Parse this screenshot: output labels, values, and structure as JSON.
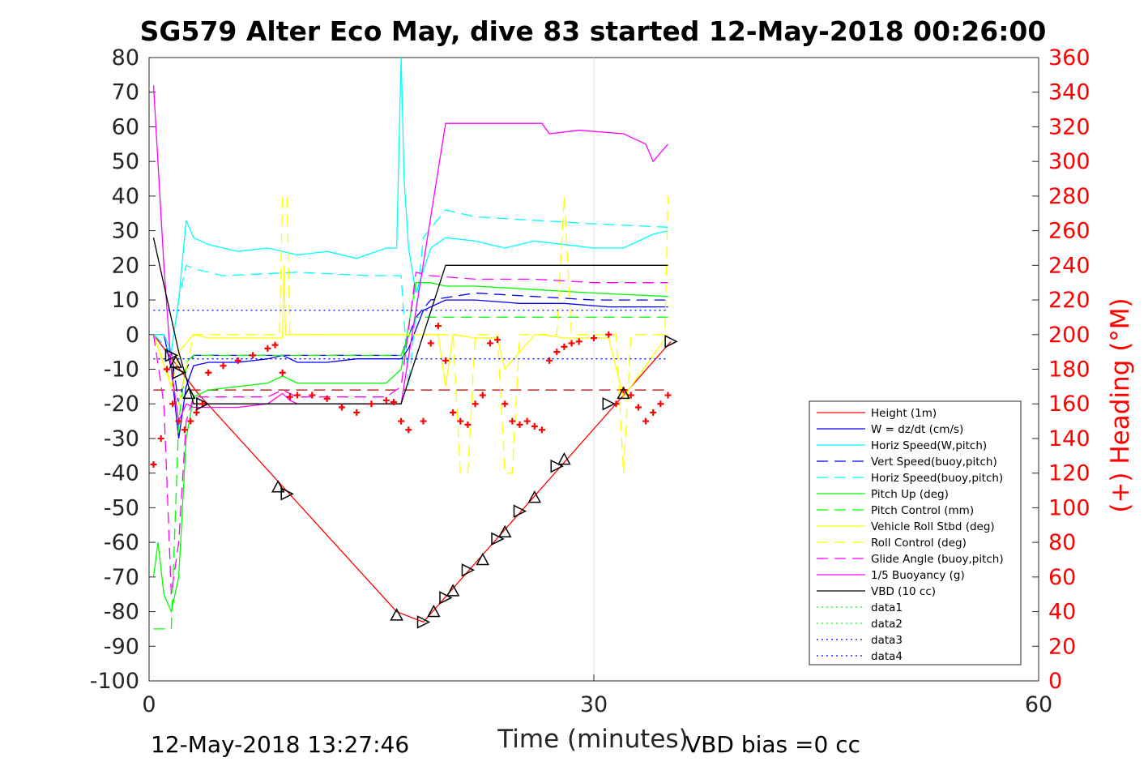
{
  "chart_data": {
    "type": "line",
    "title": "SG579 Alter Eco May, dive 83 started 12-May-2018 00:26:00",
    "xlabel": "Time (minutes)",
    "ylabel_right": "(+) Heading (°M)",
    "xlim": [
      0,
      60
    ],
    "ylim": [
      -100,
      80
    ],
    "ylim_right": [
      0,
      360
    ],
    "xticks": [
      0,
      30,
      60
    ],
    "yticks": [
      80,
      70,
      60,
      50,
      40,
      30,
      20,
      10,
      0,
      -10,
      -20,
      -30,
      -40,
      -50,
      -60,
      -70,
      -80,
      -90,
      -100
    ],
    "yticks_right": [
      360,
      340,
      320,
      300,
      280,
      260,
      240,
      220,
      200,
      180,
      160,
      140,
      120,
      100,
      80,
      60,
      40,
      20,
      0
    ],
    "grid": "x-only",
    "legend_position": "lower-right",
    "footer_left": "12-May-2018 13:27:46",
    "footer_right": "VBD bias =0 cc",
    "colors": {
      "axis": "#262626",
      "right_axis": "#ff0000"
    },
    "series": [
      {
        "name": "Height (1m)",
        "color": "#ff0000",
        "dash": "solid",
        "x": [
          0.3,
          3.3,
          16.7,
          18.5,
          35.2
        ],
        "y": [
          0,
          -17,
          -80,
          -83,
          -2
        ]
      },
      {
        "name": "W = dz/dt (cm/s)",
        "color": "#0000ff",
        "dash": "solid",
        "x": [
          0.3,
          1.0,
          1.5,
          2.0,
          2.5,
          3.0,
          4.0,
          6.0,
          8.0,
          9.0,
          10.0,
          12.0,
          14.0,
          16.0,
          17.0,
          17.5,
          18.5,
          20.0,
          22.0,
          25.0,
          28.0,
          31.0,
          33.0,
          35.0
        ],
        "y": [
          0,
          0,
          -10,
          -30,
          -15,
          -9,
          -8,
          -8,
          -7,
          -6,
          -8,
          -8,
          -7,
          -7,
          -7,
          -4,
          7,
          10,
          10,
          9,
          9,
          8,
          8,
          8
        ]
      },
      {
        "name": "Horiz Speed(W,pitch)",
        "color": "#00ffff",
        "dash": "solid",
        "x": [
          0.3,
          1.0,
          1.5,
          2.0,
          2.5,
          3.0,
          4.0,
          6.0,
          8.0,
          10.0,
          12.0,
          14.0,
          16.0,
          16.7,
          17.0,
          17.2,
          17.5,
          18.0,
          19.0,
          20.0,
          22.0,
          24.0,
          26.0,
          28.0,
          30.0,
          32.0,
          34.0,
          35.0
        ],
        "y": [
          0,
          0,
          -5,
          10,
          33,
          28,
          26,
          24,
          25,
          23,
          24,
          22,
          25,
          25,
          80,
          45,
          25,
          12,
          25,
          28,
          27,
          25,
          27,
          26,
          25,
          25,
          29,
          30
        ]
      },
      {
        "name": "Vert Speed(buoy,pitch)",
        "color": "#0000ff",
        "dash": "dash",
        "x": [
          0.3,
          1.5,
          2.0,
          2.5,
          3.0,
          5.0,
          10.0,
          15.0,
          17.0,
          18.0,
          19.0,
          22.0,
          26.0,
          30.0,
          35.0
        ],
        "y": [
          0,
          -5,
          -20,
          -10,
          -6,
          -6,
          -6,
          -6,
          -6,
          5,
          10,
          12,
          11,
          10,
          10
        ]
      },
      {
        "name": "Horiz Speed(buoy,pitch)",
        "color": "#00ffff",
        "dash": "dash",
        "x": [
          0.3,
          1.5,
          2.0,
          2.5,
          3.0,
          5.0,
          10.0,
          15.0,
          17.0,
          17.5,
          18.5,
          20.0,
          22.0,
          26.0,
          30.0,
          35.0
        ],
        "y": [
          0,
          -5,
          10,
          20,
          19,
          17,
          18,
          17,
          17,
          -15,
          28,
          36,
          34,
          33,
          32,
          31
        ]
      },
      {
        "name": "Pitch Up (deg)",
        "color": "#00ff00",
        "dash": "solid",
        "x": [
          0.3,
          0.6,
          1.0,
          1.5,
          2.0,
          2.5,
          3.0,
          4.0,
          6.0,
          8.0,
          9.0,
          10.0,
          12.0,
          14.0,
          16.0,
          17.0,
          18.0,
          19.0,
          20.0,
          22.0,
          26.0,
          30.0,
          35.0
        ],
        "y": [
          -70,
          -60,
          -75,
          -80,
          -70,
          -30,
          -18,
          -16,
          -15,
          -14,
          -12,
          -14,
          -14,
          -14,
          -14,
          -10,
          15,
          15,
          14,
          14,
          13,
          12,
          11
        ]
      },
      {
        "name": "Pitch Control (mm)",
        "color": "#00ff00",
        "dash": "dash",
        "x": [
          0.3,
          1.5,
          2.0,
          2.5,
          3.0,
          17.0,
          18.0,
          19.0,
          35.0
        ],
        "y": [
          -85,
          -85,
          -25,
          -8,
          -6,
          -6,
          5,
          5,
          5
        ]
      },
      {
        "name": "Vehicle Roll Stbd (deg)",
        "color": "#ffff00",
        "dash": "solid",
        "x": [
          0.3,
          1.5,
          2.0,
          3.0,
          4.0,
          9.0,
          9.1,
          9.2,
          17.0,
          19.5,
          20.0,
          20.5,
          22.0,
          23.5,
          24.0,
          26.0,
          26.5,
          28.0,
          30.0,
          31.0,
          32.0,
          35.0
        ],
        "y": [
          0,
          -15,
          -5,
          0,
          -1,
          -1,
          20,
          0,
          0,
          0,
          -15,
          0,
          -1,
          -1,
          -10,
          0,
          0,
          -1,
          -1,
          -1,
          -18,
          0
        ]
      },
      {
        "name": "Roll Control (deg)",
        "color": "#ffff00",
        "dash": "dash",
        "x": [
          0.3,
          2.0,
          3.0,
          8.8,
          9.0,
          9.3,
          9.5,
          20.5,
          21.0,
          21.5,
          22.0,
          23.5,
          24.0,
          24.5,
          25.0,
          27.5,
          28.0,
          28.5,
          31.5,
          32.0,
          32.5,
          34.8,
          35.0
        ],
        "y": [
          0,
          -20,
          0,
          0,
          40,
          40,
          0,
          0,
          -40,
          -40,
          0,
          0,
          -40,
          -40,
          0,
          0,
          40,
          0,
          0,
          -40,
          0,
          0,
          40
        ]
      },
      {
        "name": "Glide Angle (buoy,pitch)",
        "color": "#ff00ff",
        "dash": "dash",
        "x": [
          0.3,
          1.0,
          1.5,
          2.0,
          2.5,
          3.0,
          4.0,
          8.0,
          9.0,
          10.0,
          16.0,
          17.0,
          18.0,
          19.0,
          22.0,
          26.0,
          30.0,
          35.0
        ],
        "y": [
          0,
          -20,
          -75,
          -60,
          -25,
          -18,
          -18,
          -18,
          -16,
          -18,
          -18,
          -15,
          18,
          17,
          16,
          16,
          15,
          15
        ]
      },
      {
        "name": "1/5 Buoyancy (g)",
        "color": "#ff00ff",
        "dash": "solid",
        "x": [
          0.3,
          1.0,
          1.5,
          2.0,
          2.5,
          3.0,
          4.0,
          6.0,
          8.0,
          9.0,
          9.5,
          10.0,
          17.0,
          20.0,
          22.0,
          25.0,
          26.5,
          27.0,
          29.0,
          32.0,
          33.5,
          34.0,
          35.0
        ],
        "y": [
          72,
          20,
          -10,
          -25,
          -20,
          -21,
          -21,
          -21,
          -20,
          -17,
          -19,
          -20,
          -20,
          61,
          61,
          61,
          61,
          58,
          59,
          58,
          55,
          50,
          55
        ]
      },
      {
        "name": "VBD (10 cc)",
        "color": "#000000",
        "dash": "solid",
        "x": [
          0.3,
          2.0,
          3.0,
          17.0,
          20.0,
          35.0
        ],
        "y": [
          28,
          -5,
          -20,
          -20,
          20,
          20
        ]
      },
      {
        "name": "data1",
        "color": "#00ff00",
        "dash": "dot",
        "x": [],
        "y": []
      },
      {
        "name": "data2",
        "color": "#00ff00",
        "dash": "dot",
        "x": [],
        "y": []
      },
      {
        "name": "data3",
        "color": "#0000ff",
        "dash": "dot",
        "x": [
          0.3,
          35.0
        ],
        "y": [
          7,
          7
        ]
      },
      {
        "name": "data4",
        "color": "#0000ff",
        "dash": "dot",
        "x": [
          0.3,
          35.0
        ],
        "y": [
          -7,
          -7
        ]
      }
    ],
    "reference_lines": [
      {
        "color": "#aa0000",
        "dash": "dash",
        "x": [
          0.3,
          35.0
        ],
        "y": [
          -16,
          -16
        ]
      }
    ],
    "heading_points": {
      "color": "#ff0000",
      "marker": "plus",
      "axis": "right",
      "x": [
        0.3,
        0.8,
        1.2,
        1.6,
        2.0,
        2.4,
        2.8,
        3.2,
        3.6,
        4.0,
        5.0,
        6.0,
        7.0,
        8.0,
        8.5,
        9.0,
        9.5,
        10.0,
        11.0,
        12.0,
        13.0,
        14.0,
        15.0,
        16.0,
        16.5,
        17.0,
        17.5,
        18.5,
        19.0,
        19.5,
        20.0,
        20.5,
        21.0,
        21.5,
        22.0,
        22.5,
        23.0,
        23.5,
        24.0,
        24.5,
        25.0,
        25.5,
        26.0,
        26.5,
        27.0,
        27.5,
        28.0,
        28.5,
        29.0,
        30.0,
        31.0,
        31.5,
        32.0,
        32.5,
        33.0,
        33.5,
        34.0,
        34.5,
        35.0
      ],
      "y": [
        125,
        140,
        180,
        160,
        150,
        145,
        150,
        155,
        160,
        178,
        182,
        185,
        188,
        192,
        194,
        178,
        164,
        165,
        165,
        163,
        158,
        155,
        160,
        162,
        161,
        150,
        145,
        150,
        195,
        205,
        185,
        155,
        150,
        148,
        160,
        165,
        195,
        197,
        160,
        150,
        148,
        150,
        147,
        145,
        185,
        190,
        193,
        195,
        196,
        198,
        200,
        160,
        168,
        165,
        158,
        150,
        155,
        160,
        165
      ]
    },
    "triangle_markers": {
      "color": "#000000",
      "style": "open-triangle",
      "points": [
        [
          1.5,
          -6
        ],
        [
          1.8,
          -8
        ],
        [
          2.0,
          -11
        ],
        [
          2.7,
          -17
        ],
        [
          3.6,
          -20
        ],
        [
          8.7,
          -44
        ],
        [
          9.3,
          -46
        ],
        [
          16.7,
          -81
        ],
        [
          18.5,
          -83
        ],
        [
          19.2,
          -80
        ],
        [
          20.0,
          -76
        ],
        [
          20.5,
          -74
        ],
        [
          21.5,
          -68
        ],
        [
          22.5,
          -65
        ],
        [
          23.5,
          -59
        ],
        [
          24.0,
          -57
        ],
        [
          25.0,
          -51
        ],
        [
          26.0,
          -47
        ],
        [
          27.5,
          -38
        ],
        [
          28.0,
          -36
        ],
        [
          31.0,
          -20
        ],
        [
          32.0,
          -17
        ],
        [
          35.2,
          -2
        ]
      ]
    }
  }
}
